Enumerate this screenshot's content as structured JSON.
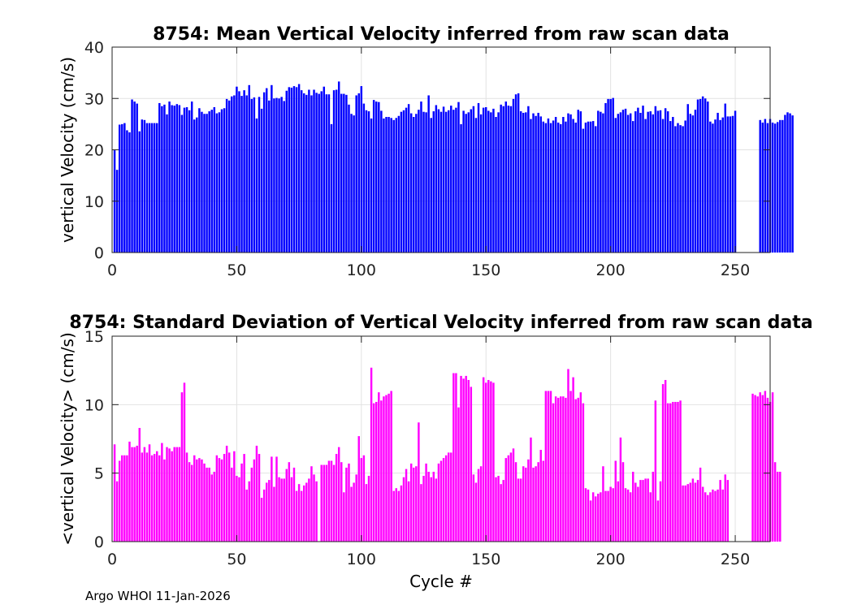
{
  "footer": "Argo WHOI 11-Jan-2026",
  "chart_data": [
    {
      "type": "bar",
      "title": "8754: Mean Vertical Velocity inferred from raw scan data",
      "xlabel": "",
      "ylabel": "vertical Velocity (cm/s)",
      "xlim": [
        0,
        264
      ],
      "ylim": [
        0,
        40
      ],
      "xticks": [
        0,
        50,
        100,
        150,
        200,
        250
      ],
      "yticks": [
        0,
        10,
        20,
        30,
        40
      ],
      "grid": true,
      "color": "#0000ff",
      "x_start": 1,
      "values": [
        19.9,
        16.1,
        24.9,
        25.0,
        25.2,
        23.8,
        23.4,
        29.8,
        29.4,
        29.0,
        23.6,
        25.9,
        25.8,
        25.2,
        25.2,
        25.2,
        25.2,
        25.2,
        29.1,
        28.5,
        28.8,
        26.9,
        29.4,
        28.7,
        28.6,
        28.9,
        28.7,
        26.8,
        28.2,
        28.3,
        27.7,
        29.4,
        25.9,
        26.3,
        28.1,
        27.4,
        27.0,
        27.0,
        27.5,
        27.8,
        28.3,
        27.1,
        27.3,
        27.9,
        28.1,
        29.9,
        29.6,
        30.4,
        30.6,
        32.3,
        31.4,
        30.5,
        31.6,
        30.6,
        32.6,
        29.9,
        30.2,
        26.1,
        30.3,
        28.0,
        31.2,
        32.0,
        29.6,
        32.6,
        30.0,
        30.1,
        30.0,
        30.3,
        29.5,
        31.5,
        32.2,
        32.1,
        32.4,
        32.2,
        32.8,
        31.6,
        31.0,
        30.7,
        31.7,
        30.6,
        31.7,
        31.1,
        30.9,
        31.4,
        32.3,
        30.8,
        30.8,
        25.0,
        31.6,
        31.7,
        33.3,
        30.9,
        30.9,
        30.7,
        28.8,
        27.0,
        26.7,
        30.6,
        31.0,
        32.4,
        29.0,
        27.7,
        27.5,
        26.1,
        29.7,
        29.4,
        29.3,
        27.6,
        26.1,
        26.4,
        26.4,
        26.2,
        25.8,
        26.2,
        26.6,
        27.4,
        27.7,
        28.2,
        28.9,
        27.1,
        26.4,
        27.0,
        27.8,
        29.4,
        27.4,
        27.3,
        30.6,
        26.2,
        27.5,
        28.7,
        27.9,
        27.4,
        28.4,
        27.4,
        27.7,
        28.6,
        27.8,
        28.2,
        29.3,
        25.0,
        27.6,
        27.0,
        27.3,
        27.9,
        28.5,
        26.2,
        29.1,
        26.9,
        28.2,
        28.3,
        27.6,
        27.3,
        28.0,
        26.4,
        27.3,
        28.8,
        28.5,
        29.4,
        28.6,
        28.5,
        29.9,
        30.8,
        31.0,
        27.5,
        27.2,
        27.3,
        28.5,
        26.0,
        27.1,
        26.6,
        27.2,
        26.5,
        25.5,
        25.2,
        26.1,
        25.2,
        25.7,
        26.4,
        25.3,
        25.0,
        26.4,
        25.5,
        27.1,
        26.9,
        26.0,
        25.3,
        27.8,
        27.5,
        24.1,
        25.3,
        25.5,
        25.5,
        25.6,
        24.6,
        27.6,
        27.4,
        27.1,
        29.1,
        29.9,
        29.9,
        30.1,
        26.2,
        27.0,
        27.3,
        27.8,
        28.0,
        26.8,
        27.1,
        25.6,
        27.5,
        28.2,
        27.2,
        28.6,
        26.0,
        27.4,
        27.5,
        26.9,
        28.5,
        27.6,
        27.7,
        26.0,
        28.1,
        27.5,
        25.6,
        26.4,
        24.6,
        25.2,
        24.8,
        24.6,
        25.7,
        28.9,
        27.0,
        26.7,
        27.8,
        29.8,
        29.9,
        30.4,
        30.0,
        29.4,
        25.5,
        25.1,
        25.9,
        27.2,
        25.8,
        26.3,
        29.0,
        26.5,
        26.5,
        26.6,
        27.6,
        null,
        null,
        null,
        null,
        null,
        null,
        null,
        null,
        null,
        25.8,
        25.3,
        26.0,
        25.2,
        26.0,
        25.3,
        25.1,
        25.4,
        25.8,
        25.8,
        26.8,
        27.3,
        27.1,
        26.7
      ]
    },
    {
      "type": "bar",
      "title": "8754: Standard Deviation of Vertical Velocity inferred from raw scan data",
      "xlabel": "Cycle #",
      "ylabel": "<vertical Velocity> (cm/s)",
      "xlim": [
        0,
        264
      ],
      "ylim": [
        0,
        15
      ],
      "xticks": [
        0,
        50,
        100,
        150,
        200,
        250
      ],
      "yticks": [
        0,
        5,
        10,
        15
      ],
      "grid": true,
      "color": "#ff00ff",
      "x_start": 1,
      "values": [
        7.1,
        4.4,
        5.9,
        6.3,
        6.3,
        6.3,
        7.3,
        6.9,
        6.9,
        7.0,
        8.3,
        6.5,
        6.9,
        6.5,
        7.1,
        6.3,
        6.4,
        6.6,
        6.3,
        7.2,
        6.0,
        6.9,
        6.8,
        6.6,
        6.9,
        6.9,
        6.9,
        10.9,
        11.6,
        6.5,
        5.8,
        5.6,
        6.3,
        6.0,
        6.1,
        6.0,
        5.7,
        5.4,
        5.4,
        4.9,
        5.1,
        6.3,
        6.1,
        6.0,
        6.4,
        7.0,
        6.5,
        5.4,
        6.6,
        4.8,
        4.7,
        5.7,
        6.4,
        3.8,
        4.4,
        5.4,
        6.0,
        7.0,
        6.4,
        3.2,
        3.8,
        4.3,
        4.5,
        6.2,
        4.0,
        6.2,
        4.7,
        4.6,
        4.6,
        5.3,
        5.8,
        4.7,
        5.4,
        3.7,
        4.2,
        3.7,
        4.1,
        4.3,
        4.6,
        5.5,
        4.9,
        4.4,
        null,
        5.6,
        5.6,
        5.6,
        5.9,
        5.9,
        5.6,
        6.4,
        6.9,
        5.8,
        3.6,
        5.4,
        5.7,
        4.0,
        4.3,
        4.9,
        7.7,
        6.1,
        6.3,
        4.2,
        4.8,
        12.7,
        10.1,
        10.2,
        10.9,
        10.3,
        10.6,
        10.7,
        10.8,
        11.0,
        3.7,
        3.9,
        3.7,
        4.1,
        4.7,
        5.3,
        4.4,
        5.7,
        5.4,
        5.5,
        8.7,
        4.2,
        4.8,
        5.7,
        5.1,
        4.7,
        5.1,
        4.6,
        5.7,
        5.9,
        6.1,
        6.3,
        6.5,
        6.5,
        12.3,
        12.3,
        9.8,
        12.1,
        11.9,
        12.1,
        11.8,
        11.3,
        4.9,
        4.3,
        5.3,
        5.5,
        12.0,
        11.6,
        11.8,
        11.7,
        11.6,
        4.7,
        4.8,
        4.2,
        4.5,
        6.1,
        6.3,
        6.5,
        6.8,
        5.8,
        4.6,
        4.6,
        5.5,
        5.4,
        6.0,
        7.6,
        5.4,
        5.5,
        5.8,
        6.7,
        5.9,
        11.0,
        11.0,
        11.0,
        10.1,
        10.6,
        10.5,
        10.6,
        10.6,
        10.5,
        12.6,
        11.0,
        12.0,
        10.4,
        10.5,
        10.9,
        10.1,
        3.9,
        3.8,
        3.0,
        3.6,
        3.3,
        3.5,
        3.6,
        5.5,
        3.7,
        3.7,
        4.0,
        3.9,
        5.9,
        4.4,
        7.6,
        5.8,
        3.9,
        3.8,
        3.6,
        5.1,
        4.3,
        4.0,
        4.5,
        4.5,
        4.6,
        4.6,
        3.6,
        5.1,
        10.3,
        3.0,
        4.4,
        11.5,
        11.8,
        10.1,
        10.1,
        10.2,
        10.2,
        10.2,
        10.3,
        4.1,
        4.1,
        4.2,
        4.3,
        4.6,
        4.3,
        4.5,
        5.4,
        4.0,
        3.6,
        3.4,
        3.6,
        3.8,
        3.7,
        3.8,
        4.5,
        3.8,
        4.9,
        4.5,
        null,
        null,
        null,
        null,
        null,
        null,
        null,
        null,
        null,
        10.8,
        10.7,
        10.6,
        10.9,
        10.7,
        11.0,
        10.5,
        10.2,
        10.9,
        5.8,
        5.1,
        5.1
      ]
    }
  ]
}
